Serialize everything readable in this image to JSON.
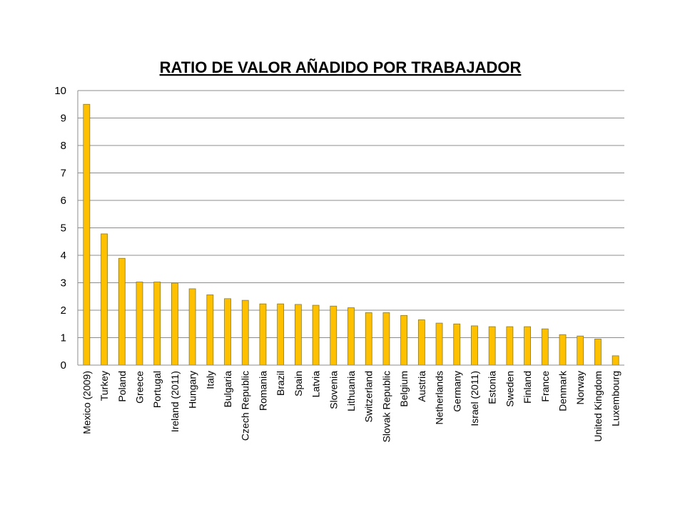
{
  "chart_data": {
    "type": "bar",
    "title": "RATIO DE VALOR AÑADIDO POR TRABAJADOR",
    "xlabel": "",
    "ylabel": "",
    "ylim": [
      0,
      10
    ],
    "yticks": [
      "0",
      "1",
      "2",
      "3",
      "4",
      "5",
      "6",
      "7",
      "8",
      "9",
      "10"
    ],
    "grid": true,
    "legend": "none",
    "bar_color": "#FFC000",
    "bar_edge_color": "#8a7a2a",
    "gridline_color": "#8c8c8c",
    "categories": [
      "Mexico (2009)",
      "Turkey",
      "Poland",
      "Greece",
      "Portugal",
      "Ireland (2011)",
      "Hungary",
      "Italy",
      "Bulgaria",
      "Czech Republic",
      "Romania",
      "Brazil",
      "Spain",
      "Latvia",
      "Slovenia",
      "Lithuania",
      "Switzerland",
      "Slovak Republic",
      "Belgium",
      "Austria",
      "Netherlands",
      "Germany",
      "Israel (2011)",
      "Estonia",
      "Sweden",
      "Finland",
      "France",
      "Denmark",
      "Norway",
      "United Kingdom",
      "Luxembourg"
    ],
    "values": [
      9.5,
      4.78,
      3.89,
      3.03,
      3.03,
      2.99,
      2.78,
      2.56,
      2.42,
      2.36,
      2.23,
      2.23,
      2.21,
      2.18,
      2.15,
      2.09,
      1.91,
      1.91,
      1.81,
      1.65,
      1.53,
      1.5,
      1.43,
      1.4,
      1.4,
      1.4,
      1.32,
      1.11,
      1.06,
      0.95,
      0.34
    ]
  }
}
